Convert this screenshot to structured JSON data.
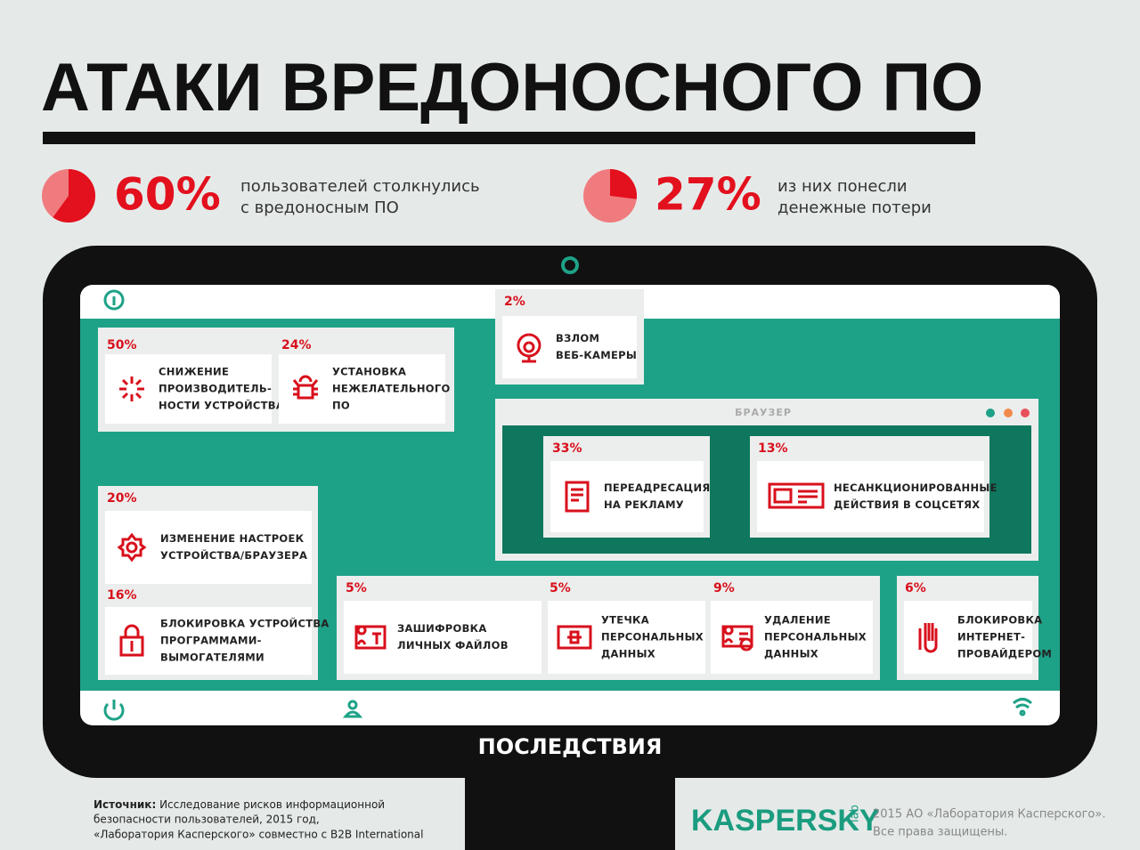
{
  "title": "АТАКИ ВРЕДОНОСНОГО ПО",
  "stats": [
    {
      "value": 60,
      "value_label": "60%",
      "lines": [
        "пользователей столкнулись",
        "с вредоносным ПО"
      ]
    },
    {
      "value": 27,
      "value_label": "27%",
      "lines": [
        "из них понесли",
        "денежные потери"
      ]
    }
  ],
  "items": [
    {
      "percent": "50%",
      "lines": [
        "СНИЖЕНИЕ",
        "ПРОИЗВОДИТЕЛЬ-",
        "НОСТИ УСТРОЙСТВА"
      ]
    },
    {
      "percent": "24%",
      "lines": [
        "УСТАНОВКА",
        "НЕЖЕЛАТЕЛЬНОГО",
        "ПО"
      ]
    },
    {
      "percent": "2%",
      "lines": [
        "ВЗЛОМ",
        "ВЕБ-КАМЕРЫ"
      ]
    },
    {
      "percent": "33%",
      "lines": [
        "ПЕРЕАДРЕСАЦИЯ",
        "НА РЕКЛАМУ"
      ]
    },
    {
      "percent": "13%",
      "lines": [
        "НЕСАНКЦИОНИРОВАННЫЕ",
        "ДЕЙСТВИЯ В СОЦСЕТЯХ"
      ]
    },
    {
      "percent": "20%",
      "lines": [
        "ИЗМЕНЕНИЕ НАСТРОЕК",
        "УСТРОЙСТВА/БРАУЗЕРА"
      ]
    },
    {
      "percent": "16%",
      "lines": [
        "БЛОКИРОВКА УСТРОЙСТВА",
        "ПРОГРАММАМИ-",
        "ВЫМОГАТЕЛЯМИ"
      ]
    },
    {
      "percent": "5%",
      "lines": [
        "ЗАШИФРОВКА",
        "ЛИЧНЫХ ФАЙЛОВ"
      ]
    },
    {
      "percent": "5%",
      "lines": [
        "УТЕЧКА",
        "ПЕРСОНАЛЬНЫХ",
        "ДАННЫХ"
      ]
    },
    {
      "percent": "9%",
      "lines": [
        "УДАЛЕНИЕ",
        "ПЕРСОНАЛЬНЫХ",
        "ДАННЫХ"
      ]
    },
    {
      "percent": "6%",
      "lines": [
        "БЛОКИРОВКА",
        "ИНТЕРНЕТ-",
        "ПРОВАЙДЕРОМ"
      ]
    }
  ],
  "browser_label": "БРАУЗЕР",
  "monitor_label": "ПОСЛЕДСТВИЯ",
  "source": {
    "label": "Источник:",
    "lines": [
      "Исследование рисков информационной",
      "безопасности пользователей, 2015 год,",
      "«Лаборатория Касперского» совместно с B2B International"
    ]
  },
  "logo": {
    "name": "KASPERSKY",
    "sub": "lab"
  },
  "copyright": [
    "2015 АО «Лаборатория Касперского».",
    "Все права защищены."
  ]
}
